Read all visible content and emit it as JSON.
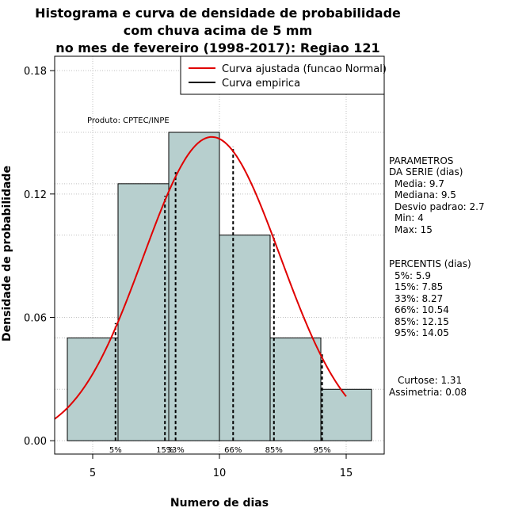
{
  "chart_data": {
    "type": "histogram",
    "title_lines": [
      "Histograma e curva de densidade de probabilidade",
      "com chuva acima de 5 mm",
      "no mes de fevereiro (1998-2017): Regiao 121"
    ],
    "xlabel": "Numero de dias",
    "ylabel": "Densidade de probabilidade",
    "xlim": [
      3.5,
      16.5
    ],
    "ylim": [
      -0.0065,
      0.187
    ],
    "x_ticks": [
      5,
      10,
      15
    ],
    "y_ticks": [
      0.0,
      0.06,
      0.12,
      0.18
    ],
    "y_tick_labels": [
      "0.00",
      "0.06",
      "0.12",
      "0.18"
    ],
    "bins": [
      {
        "from": 4,
        "to": 6,
        "density": 0.05
      },
      {
        "from": 6,
        "to": 8,
        "density": 0.125
      },
      {
        "from": 8,
        "to": 10,
        "density": 0.15
      },
      {
        "from": 10,
        "to": 12,
        "density": 0.1
      },
      {
        "from": 12,
        "to": 14,
        "density": 0.05
      },
      {
        "from": 14,
        "to": 16,
        "density": 0.025
      }
    ],
    "normal_curve": {
      "mean": 9.7,
      "sd": 2.7,
      "x_from": 3.5,
      "x_to": 15
    },
    "percentile_lines": [
      {
        "label": "5%",
        "x": 5.9
      },
      {
        "label": "15%",
        "x": 7.85
      },
      {
        "label": "33%",
        "x": 8.27
      },
      {
        "label": "66%",
        "x": 10.54
      },
      {
        "label": "85%",
        "x": 12.15
      },
      {
        "label": "95%",
        "x": 14.05
      }
    ],
    "legend": [
      {
        "label": "Curva ajustada (funcao Normal)",
        "color": "#e00000"
      },
      {
        "label": "Curva empirica",
        "color": "#000000"
      }
    ],
    "credit": "Produto: CPTEC/INPE",
    "colors": {
      "bar_fill": "#b7cfce",
      "curve": "#e00000",
      "grid": "#c0c0c0"
    }
  },
  "stats_panel": {
    "params_header_1": "PARAMETROS",
    "params_header_2": "DA SERIE (dias)",
    "media": "Media: 9.7",
    "mediana": "Mediana: 9.5",
    "desvio": "Desvio padrao: 2.7",
    "min": "Min: 4",
    "max": "Max: 15",
    "percentis_header": "PERCENTIS (dias)",
    "p5": "5%: 5.9",
    "p15": "15%: 7.85",
    "p33": "33%: 8.27",
    "p66": "66%: 10.54",
    "p85": "85%: 12.15",
    "p95": "95%: 14.05",
    "curtose": "Curtose: 1.31",
    "assimetria": "Assimetria: 0.08"
  }
}
